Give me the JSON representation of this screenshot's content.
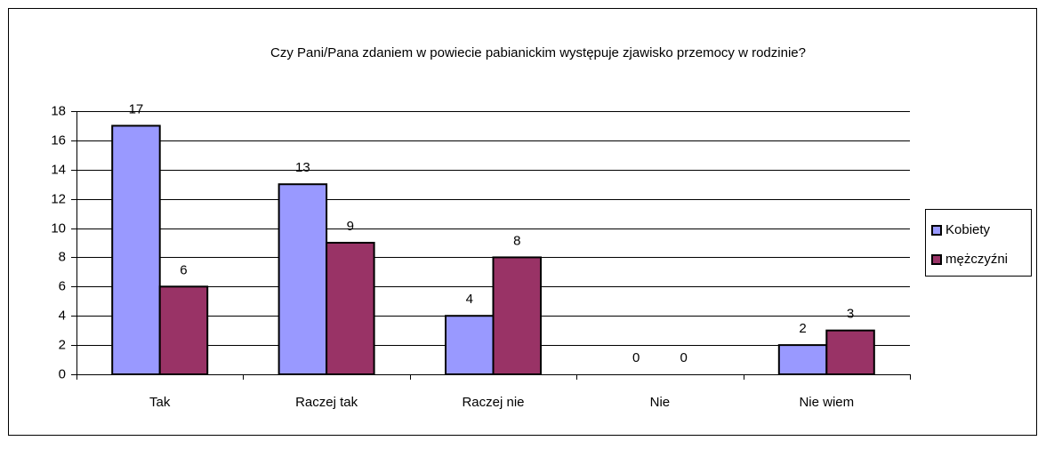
{
  "chart_data": {
    "type": "bar",
    "title": "Czy Pani/Pana zdaniem w powiecie pabianickim występuje zjawisko przemocy w rodzinie?",
    "categories": [
      "Tak",
      "Raczej tak",
      "Raczej nie",
      "Nie",
      "Nie wiem"
    ],
    "series": [
      {
        "name": "Kobiety",
        "color": "#9999ff",
        "values": [
          17,
          13,
          4,
          0,
          2
        ]
      },
      {
        "name": "mężczyźni",
        "color": "#993366",
        "values": [
          6,
          9,
          8,
          0,
          3
        ]
      }
    ],
    "ylim": [
      0,
      18
    ],
    "yticks": [
      0,
      2,
      4,
      6,
      8,
      10,
      12,
      14,
      16,
      18
    ],
    "grid": true,
    "legend": "right"
  }
}
